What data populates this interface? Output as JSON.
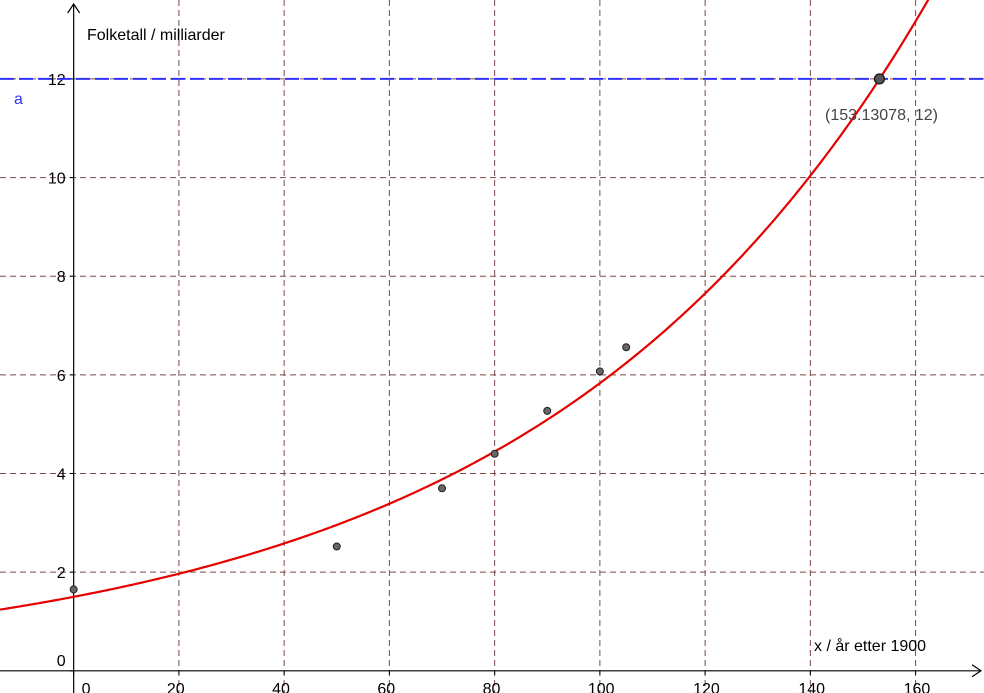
{
  "chart_data": {
    "type": "scatter",
    "xlabel": "x / år etter 1900",
    "ylabel": "Folketall / milliarder",
    "xlim": [
      -14,
      173
    ],
    "ylim": [
      -0.45,
      13.6
    ],
    "x_ticks": [
      0,
      20,
      40,
      60,
      80,
      100,
      120,
      140,
      160
    ],
    "y_ticks": [
      0,
      2,
      4,
      6,
      8,
      10,
      12
    ],
    "x_tick_labels": [
      "0",
      "20",
      "40",
      "60",
      "80",
      "100",
      "120",
      "140",
      "160"
    ],
    "y_tick_labels": [
      "0",
      "2",
      "4",
      "6",
      "8",
      "10",
      "12"
    ],
    "grid": true,
    "grid_style": "dashed",
    "grid_color": "#7a4a4a",
    "scatter": {
      "x": [
        0,
        50,
        70,
        80,
        90,
        100,
        105
      ],
      "y": [
        1.65,
        2.52,
        3.7,
        4.4,
        5.27,
        6.07,
        6.56
      ],
      "color": "#555555"
    },
    "curve": {
      "form": "exponential",
      "a": 1.5,
      "b": 1.01367,
      "color": "#e60000"
    },
    "horizontal_line": {
      "label": "a",
      "y": 12,
      "color": "#3333ff"
    },
    "intersection_point": {
      "x": 153.13078,
      "y": 12,
      "label": "(153.13078, 12)"
    }
  }
}
